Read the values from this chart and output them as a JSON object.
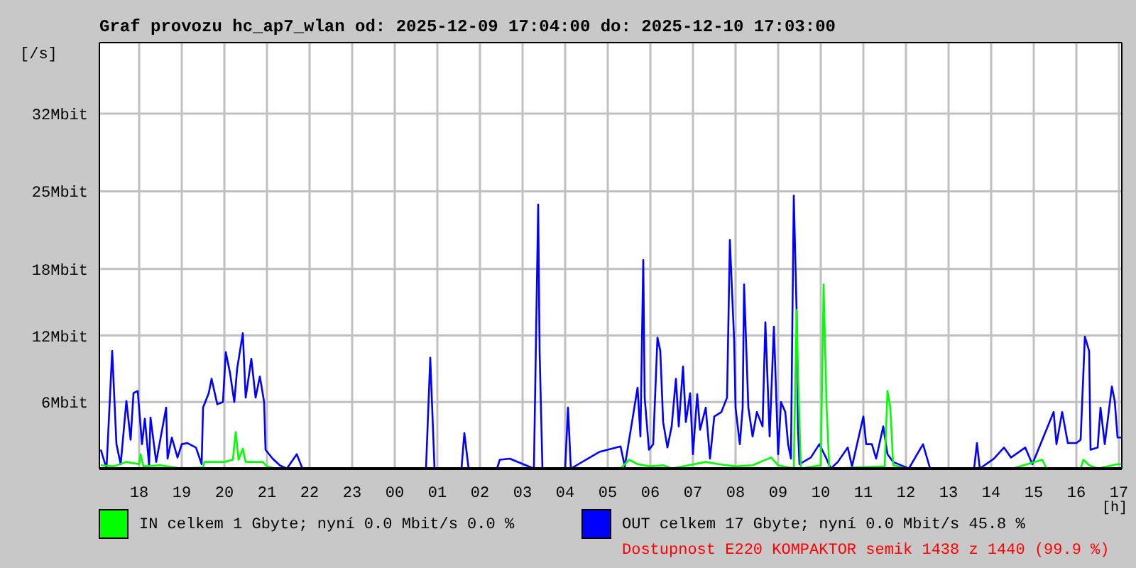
{
  "chart_data": {
    "type": "line",
    "title": "Graf provozu hc_ap7_wlan od: 2025-12-09 17:04:00 do: 2025-12-10 17:03:00",
    "xlabel": "[h]",
    "ylabel": "[/s]",
    "xlim": [
      "2025-12-09T17:04",
      "2025-12-10T17:04"
    ],
    "xticks": [
      {
        "value": "2025-12-09T18:00",
        "label": "18"
      },
      {
        "value": "2025-12-09T19:00",
        "label": "19"
      },
      {
        "value": "2025-12-09T20:00",
        "label": "20"
      },
      {
        "value": "2025-12-09T21:00",
        "label": "21"
      },
      {
        "value": "2025-12-09T22:00",
        "label": "22"
      },
      {
        "value": "2025-12-09T23:00",
        "label": "23"
      },
      {
        "value": "2025-12-10T00:00",
        "label": "00"
      },
      {
        "value": "2025-12-10T01:00",
        "label": "01"
      },
      {
        "value": "2025-12-10T02:00",
        "label": "02"
      },
      {
        "value": "2025-12-10T03:00",
        "label": "03"
      },
      {
        "value": "2025-12-10T04:00",
        "label": "04"
      },
      {
        "value": "2025-12-10T05:00",
        "label": "05"
      },
      {
        "value": "2025-12-10T06:00",
        "label": "06"
      },
      {
        "value": "2025-12-10T07:00",
        "label": "07"
      },
      {
        "value": "2025-12-10T08:00",
        "label": "08"
      },
      {
        "value": "2025-12-10T09:00",
        "label": "09"
      },
      {
        "value": "2025-12-10T10:00",
        "label": "10"
      },
      {
        "value": "2025-12-10T11:00",
        "label": "11"
      },
      {
        "value": "2025-12-10T12:00",
        "label": "12"
      },
      {
        "value": "2025-12-10T13:00",
        "label": "13"
      },
      {
        "value": "2025-12-10T14:00",
        "label": "14"
      },
      {
        "value": "2025-12-10T15:00",
        "label": "15"
      },
      {
        "value": "2025-12-10T16:00",
        "label": "16"
      },
      {
        "value": "2025-12-10T17:00",
        "label": "17"
      }
    ],
    "ylim": [
      0,
      38.4
    ],
    "yticks": [
      {
        "value": 6,
        "label": "6Mbit"
      },
      {
        "value": 12,
        "label": "12Mbit"
      },
      {
        "value": 18,
        "label": "18Mbit"
      },
      {
        "value": 25,
        "label": "25Mbit"
      },
      {
        "value": 32,
        "label": "32Mbit"
      }
    ],
    "grid": true,
    "legend": "bottom",
    "series": [
      {
        "name": "IN celkem 1 Gbyte; nyní   0.0 Mbit/s 0.0 %",
        "color": "#00ff00",
        "x": [
          "2025-12-09T17:06",
          "2025-12-09T17:24",
          "2025-12-09T17:42",
          "2025-12-09T18:00",
          "2025-12-09T18:02",
          "2025-12-09T18:06",
          "2025-12-09T18:30",
          "2025-12-09T19:00",
          "2025-12-09T19:30",
          "2025-12-09T19:32",
          "2025-12-09T20:00",
          "2025-12-09T20:12",
          "2025-12-09T20:16",
          "2025-12-09T20:20",
          "2025-12-09T20:26",
          "2025-12-09T20:30",
          "2025-12-09T20:54",
          "2025-12-09T21:00",
          "2025-12-09T21:12",
          "2025-12-10T05:18",
          "2025-12-10T05:30",
          "2025-12-10T05:42",
          "2025-12-10T06:00",
          "2025-12-10T06:18",
          "2025-12-10T06:30",
          "2025-12-10T07:18",
          "2025-12-10T07:36",
          "2025-12-10T08:00",
          "2025-12-10T08:24",
          "2025-12-10T08:50",
          "2025-12-10T09:00",
          "2025-12-10T09:22",
          "2025-12-10T09:26",
          "2025-12-10T09:28",
          "2025-12-10T09:32",
          "2025-12-10T10:00",
          "2025-12-10T10:04",
          "2025-12-10T10:08",
          "2025-12-10T10:12",
          "2025-12-10T11:30",
          "2025-12-10T11:34",
          "2025-12-10T11:38",
          "2025-12-10T11:42",
          "2025-12-10T12:00",
          "2025-12-10T14:30",
          "2025-12-10T15:12",
          "2025-12-10T15:18",
          "2025-12-10T16:06",
          "2025-12-10T16:10",
          "2025-12-10T16:18",
          "2025-12-10T16:30",
          "2025-12-10T16:58",
          "2025-12-10T17:04"
        ],
        "values": [
          0.3,
          0.2,
          0.6,
          0.4,
          1.3,
          0.2,
          0.3,
          0,
          0.1,
          0.6,
          0.6,
          0.8,
          3.3,
          0.8,
          1.8,
          0.6,
          0.6,
          0.2,
          0,
          0,
          0.8,
          0.4,
          0.2,
          0.3,
          0,
          0.6,
          0.4,
          0.2,
          0.3,
          1.0,
          0.3,
          0,
          14.3,
          8.6,
          0,
          0.3,
          16.6,
          6.0,
          0,
          0.2,
          7.0,
          5.5,
          0.3,
          0,
          0,
          0.8,
          0,
          0,
          0.8,
          0.3,
          0,
          0.4,
          0.4
        ]
      },
      {
        "name": "OUT celkem 17 Gbyte; nyní   0.0 Mbit/s 45.8 %",
        "color": "#0000ff",
        "x": [
          "2025-12-09T17:06",
          "2025-12-09T17:14",
          "2025-12-09T17:22",
          "2025-12-09T17:28",
          "2025-12-09T17:34",
          "2025-12-09T17:42",
          "2025-12-09T17:48",
          "2025-12-09T17:52",
          "2025-12-09T17:58",
          "2025-12-09T18:04",
          "2025-12-09T18:08",
          "2025-12-09T18:14",
          "2025-12-09T18:16",
          "2025-12-09T18:24",
          "2025-12-09T18:38",
          "2025-12-09T18:40",
          "2025-12-09T18:46",
          "2025-12-09T18:54",
          "2025-12-09T19:00",
          "2025-12-09T19:08",
          "2025-12-09T19:20",
          "2025-12-09T19:28",
          "2025-12-09T19:30",
          "2025-12-09T19:38",
          "2025-12-09T19:42",
          "2025-12-09T19:50",
          "2025-12-09T19:58",
          "2025-12-09T20:02",
          "2025-12-09T20:08",
          "2025-12-09T20:14",
          "2025-12-09T20:18",
          "2025-12-09T20:26",
          "2025-12-09T20:30",
          "2025-12-09T20:38",
          "2025-12-09T20:44",
          "2025-12-09T20:50",
          "2025-12-09T20:56",
          "2025-12-09T20:58",
          "2025-12-09T21:08",
          "2025-12-09T21:18",
          "2025-12-09T21:28",
          "2025-12-09T21:42",
          "2025-12-09T21:50",
          "2025-12-09T23:50",
          "2025-12-10T00:44",
          "2025-12-10T00:50",
          "2025-12-10T00:56",
          "2025-12-10T01:34",
          "2025-12-10T01:38",
          "2025-12-10T01:44",
          "2025-12-10T02:24",
          "2025-12-10T02:28",
          "2025-12-10T02:42",
          "2025-12-10T03:16",
          "2025-12-10T03:22",
          "2025-12-10T03:24",
          "2025-12-10T03:28",
          "2025-12-10T04:00",
          "2025-12-10T04:04",
          "2025-12-10T04:08",
          "2025-12-10T04:48",
          "2025-12-10T05:18",
          "2025-12-10T05:24",
          "2025-12-10T05:42",
          "2025-12-10T05:46",
          "2025-12-10T05:50",
          "2025-12-10T05:52",
          "2025-12-10T05:58",
          "2025-12-10T06:04",
          "2025-12-10T06:10",
          "2025-12-10T06:14",
          "2025-12-10T06:18",
          "2025-12-10T06:24",
          "2025-12-10T06:30",
          "2025-12-10T06:36",
          "2025-12-10T06:40",
          "2025-12-10T06:46",
          "2025-12-10T06:50",
          "2025-12-10T06:56",
          "2025-12-10T07:00",
          "2025-12-10T07:06",
          "2025-12-10T07:10",
          "2025-12-10T07:18",
          "2025-12-10T07:24",
          "2025-12-10T07:30",
          "2025-12-10T07:40",
          "2025-12-10T07:48",
          "2025-12-10T07:52",
          "2025-12-10T07:58",
          "2025-12-10T08:00",
          "2025-12-10T08:06",
          "2025-12-10T08:10",
          "2025-12-10T08:12",
          "2025-12-10T08:18",
          "2025-12-10T08:24",
          "2025-12-10T08:30",
          "2025-12-10T08:38",
          "2025-12-10T08:42",
          "2025-12-10T08:48",
          "2025-12-10T08:54",
          "2025-12-10T09:00",
          "2025-12-10T09:04",
          "2025-12-10T09:10",
          "2025-12-10T09:14",
          "2025-12-10T09:18",
          "2025-12-10T09:20",
          "2025-12-10T09:22",
          "2025-12-10T09:26",
          "2025-12-10T09:28",
          "2025-12-10T09:30",
          "2025-12-10T09:46",
          "2025-12-10T09:58",
          "2025-12-10T10:08",
          "2025-12-10T10:14",
          "2025-12-10T10:24",
          "2025-12-10T10:38",
          "2025-12-10T10:44",
          "2025-12-10T11:00",
          "2025-12-10T11:04",
          "2025-12-10T11:12",
          "2025-12-10T11:18",
          "2025-12-10T11:28",
          "2025-12-10T11:34",
          "2025-12-10T11:42",
          "2025-12-10T12:04",
          "2025-12-10T12:24",
          "2025-12-10T12:34",
          "2025-12-10T13:36",
          "2025-12-10T13:40",
          "2025-12-10T13:44",
          "2025-12-10T14:04",
          "2025-12-10T14:18",
          "2025-12-10T14:28",
          "2025-12-10T14:48",
          "2025-12-10T14:58",
          "2025-12-10T15:28",
          "2025-12-10T15:32",
          "2025-12-10T15:40",
          "2025-12-10T15:48",
          "2025-12-10T16:00",
          "2025-12-10T16:06",
          "2025-12-10T16:12",
          "2025-12-10T16:18",
          "2025-12-10T16:20",
          "2025-12-10T16:30",
          "2025-12-10T16:34",
          "2025-12-10T16:40",
          "2025-12-10T16:50",
          "2025-12-10T16:54",
          "2025-12-10T16:58",
          "2025-12-10T17:04"
        ],
        "values": [
          1.7,
          0,
          10.6,
          2.2,
          0.4,
          6.1,
          2.6,
          6.8,
          7.0,
          2.2,
          4.5,
          0.3,
          4.6,
          0.6,
          5.5,
          0.9,
          2.8,
          1.0,
          2.2,
          2.3,
          1.9,
          0.4,
          5.5,
          6.8,
          8.1,
          5.8,
          6.0,
          10.5,
          8.6,
          6.0,
          9.0,
          12.2,
          6.4,
          9.9,
          6.4,
          8.3,
          6.0,
          1.7,
          0.9,
          0.3,
          0,
          1.3,
          0,
          0,
          0,
          10.0,
          0,
          0,
          3.2,
          0,
          0,
          0.8,
          0.9,
          0,
          23.8,
          10.6,
          0,
          0,
          5.5,
          0,
          1.5,
          2.0,
          0.2,
          7.3,
          2.9,
          18.8,
          6.4,
          1.7,
          2.2,
          11.8,
          10.6,
          4.2,
          1.9,
          3.8,
          8.1,
          3.8,
          9.2,
          4.2,
          6.8,
          1.3,
          6.7,
          3.5,
          5.5,
          0.9,
          4.7,
          5.1,
          6.4,
          20.6,
          11.5,
          5.5,
          2.2,
          5.5,
          16.6,
          5.5,
          2.9,
          5.1,
          3.8,
          13.2,
          2.9,
          12.8,
          1.3,
          6.0,
          5.1,
          2.2,
          0.9,
          13.2,
          24.6,
          14.1,
          3.5,
          0.4,
          1.0,
          2.2,
          0.9,
          0,
          0.6,
          1.9,
          0.2,
          4.7,
          2.2,
          2.2,
          0.9,
          3.8,
          1.3,
          0.6,
          0,
          2.2,
          0,
          0,
          2.3,
          0,
          0.9,
          1.9,
          1.0,
          1.9,
          0.4,
          5.1,
          2.2,
          5.1,
          2.3,
          2.3,
          2.6,
          11.9,
          10.6,
          1.7,
          1.9,
          5.5,
          2.2,
          7.4,
          6.1,
          2.8,
          2.8
        ]
      }
    ],
    "annotations": [
      "Dostupnost E220 KOMPAKTOR semik 1438 z 1440 (99.9 %)"
    ]
  }
}
